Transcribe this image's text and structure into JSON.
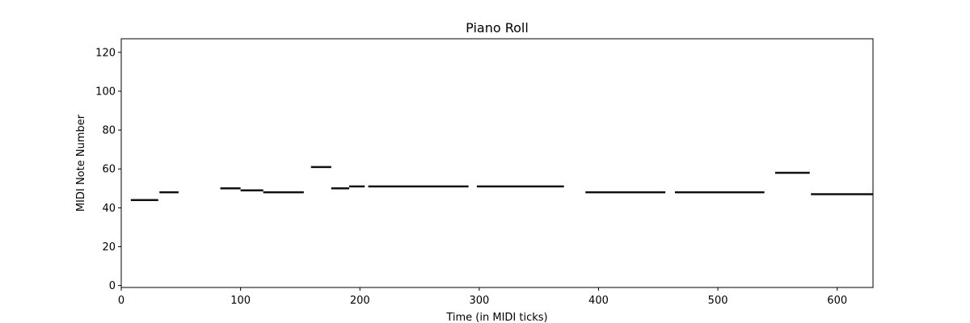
{
  "chart_data": {
    "type": "piano-roll",
    "title": "Piano Roll",
    "xlabel": "Time (in MIDI ticks)",
    "ylabel": "MIDI Note Number",
    "xlim": [
      0,
      630
    ],
    "ylim": [
      -1,
      127
    ],
    "x_ticks": [
      0,
      100,
      200,
      300,
      400,
      500,
      600
    ],
    "y_ticks": [
      0,
      20,
      40,
      60,
      80,
      100,
      120
    ],
    "grid": false,
    "note_color": "#111111",
    "notes": [
      {
        "start": 8,
        "end": 31,
        "pitch": 44
      },
      {
        "start": 32,
        "end": 48,
        "pitch": 48
      },
      {
        "start": 83,
        "end": 100,
        "pitch": 50
      },
      {
        "start": 100,
        "end": 119,
        "pitch": 49
      },
      {
        "start": 119,
        "end": 153,
        "pitch": 48
      },
      {
        "start": 159,
        "end": 176,
        "pitch": 61
      },
      {
        "start": 176,
        "end": 191,
        "pitch": 50
      },
      {
        "start": 191,
        "end": 204,
        "pitch": 51
      },
      {
        "start": 207,
        "end": 291,
        "pitch": 51
      },
      {
        "start": 298,
        "end": 371,
        "pitch": 51
      },
      {
        "start": 389,
        "end": 456,
        "pitch": 48
      },
      {
        "start": 464,
        "end": 539,
        "pitch": 48
      },
      {
        "start": 548,
        "end": 577,
        "pitch": 58
      },
      {
        "start": 578,
        "end": 630,
        "pitch": 47
      }
    ]
  }
}
